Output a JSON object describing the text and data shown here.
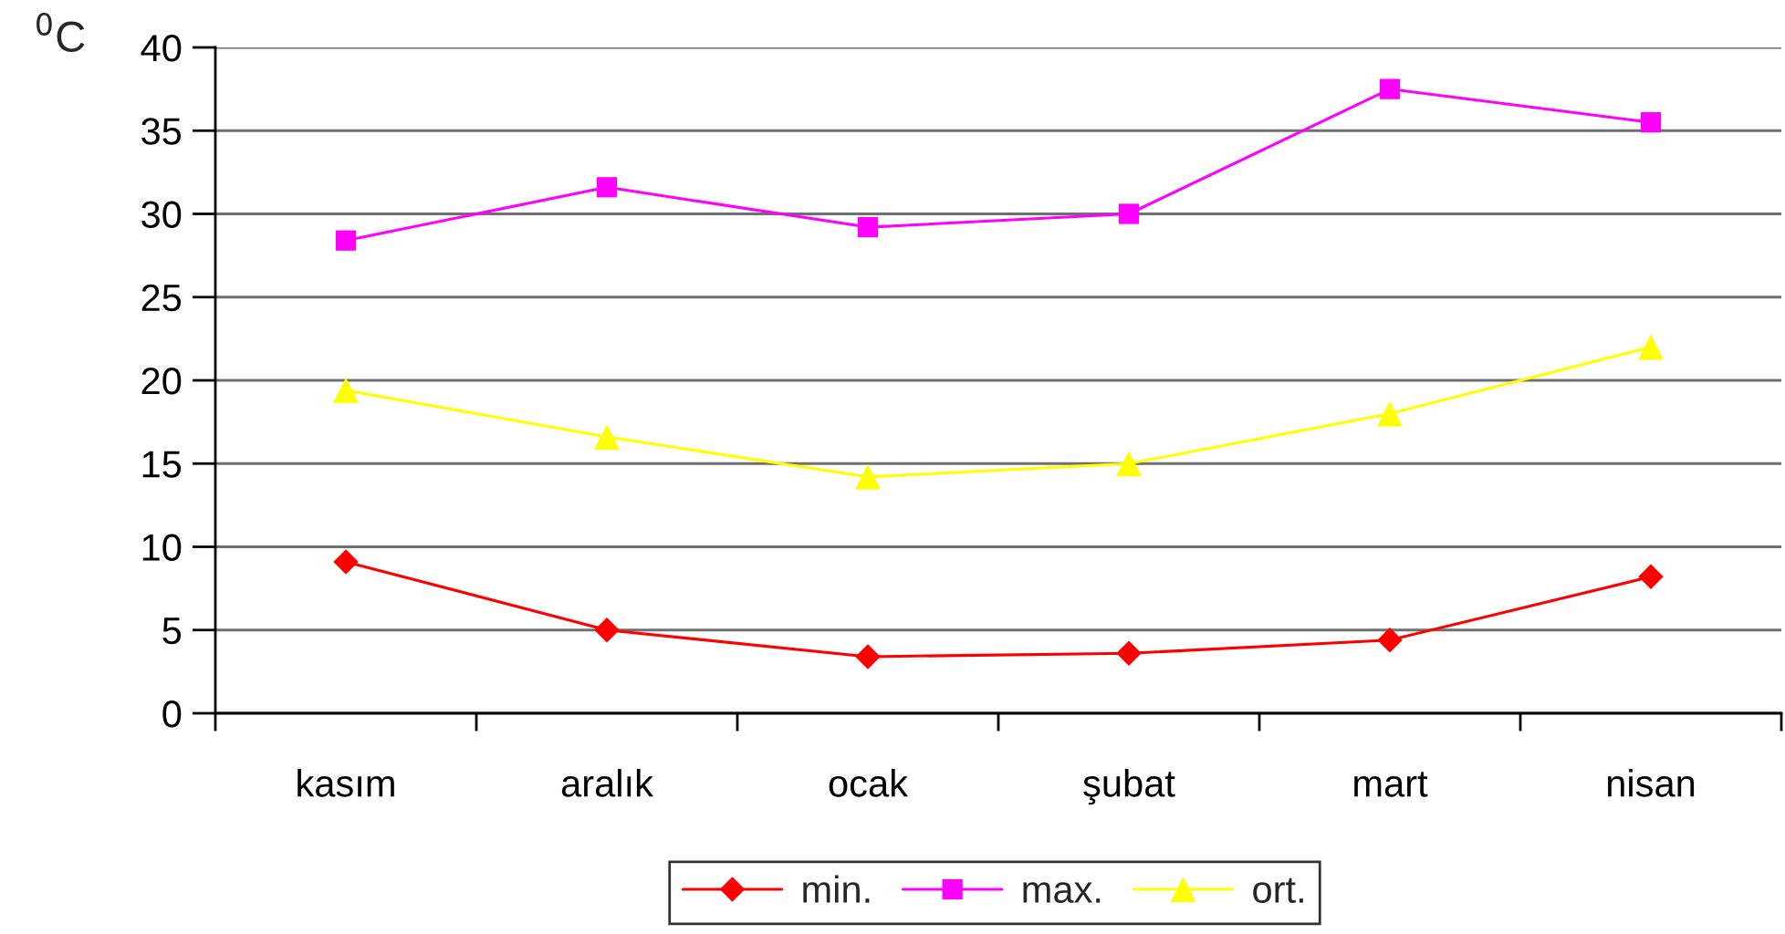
{
  "chart_data": {
    "type": "line",
    "ylabel": "$^{0}$C",
    "categories": [
      "kasım",
      "aralık",
      "ocak",
      "şubat",
      "mart",
      "nisan"
    ],
    "series": [
      {
        "name": "min.",
        "color": "#ff0000",
        "marker": "diamond",
        "values": [
          9.1,
          5.0,
          3.4,
          3.6,
          4.4,
          8.2
        ]
      },
      {
        "name": "max.",
        "color": "#ff00ff",
        "marker": "square",
        "values": [
          28.4,
          31.6,
          29.2,
          30.0,
          37.5,
          35.5
        ]
      },
      {
        "name": "ort.",
        "color": "#ffff00",
        "marker": "triangle",
        "values": [
          19.4,
          16.6,
          14.2,
          15.0,
          18.0,
          22.0
        ]
      }
    ],
    "ylim": [
      0,
      40
    ],
    "yticks": [
      0,
      5,
      10,
      15,
      20,
      25,
      30,
      35,
      40
    ],
    "grid": "y",
    "legend": "bottom",
    "line_style": "solid"
  }
}
